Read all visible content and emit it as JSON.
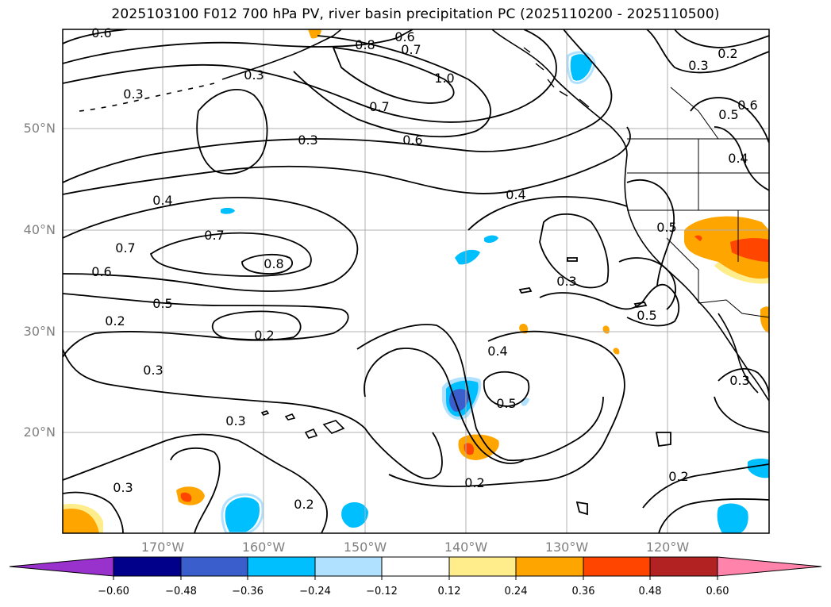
{
  "title": "2025103100 F012 700 hPa PV, river basin precipitation PC (2025110200 - 2025110500)",
  "map": {
    "lat_labels": [
      "50°N",
      "40°N",
      "30°N",
      "20°N"
    ],
    "lon_labels": [
      "170°W",
      "160°W",
      "150°W",
      "140°W",
      "130°W",
      "120°W"
    ],
    "contour_labels": [
      {
        "id": "c1",
        "text": "0.6"
      },
      {
        "id": "c2",
        "text": "0.8"
      },
      {
        "id": "c3",
        "text": "0.6"
      },
      {
        "id": "c4",
        "text": "0.7"
      },
      {
        "id": "c5",
        "text": "0.3"
      },
      {
        "id": "c6",
        "text": "0.3"
      },
      {
        "id": "c7",
        "text": "1.0"
      },
      {
        "id": "c8",
        "text": "0.7"
      },
      {
        "id": "c9",
        "text": "0.6"
      },
      {
        "id": "c10",
        "text": "0.3"
      },
      {
        "id": "c11",
        "text": "0.2"
      },
      {
        "id": "c12",
        "text": "0.3"
      },
      {
        "id": "c13",
        "text": "0.6"
      },
      {
        "id": "c14",
        "text": "0.5"
      },
      {
        "id": "c15",
        "text": "0.4"
      },
      {
        "id": "c16",
        "text": "0.4"
      },
      {
        "id": "c17",
        "text": "0.4"
      },
      {
        "id": "c18",
        "text": "0.7"
      },
      {
        "id": "c19",
        "text": "0.7"
      },
      {
        "id": "c20",
        "text": "0.8"
      },
      {
        "id": "c21",
        "text": "0.6"
      },
      {
        "id": "c22",
        "text": "0.5"
      },
      {
        "id": "c23",
        "text": "0.2"
      },
      {
        "id": "c24",
        "text": "0.2"
      },
      {
        "id": "c25",
        "text": "0.3"
      },
      {
        "id": "c26",
        "text": "0.3"
      },
      {
        "id": "c27",
        "text": "0.5"
      },
      {
        "id": "c28",
        "text": "0.4"
      },
      {
        "id": "c29",
        "text": "0.5"
      },
      {
        "id": "c30",
        "text": "0.5"
      },
      {
        "id": "c31",
        "text": "0.3"
      },
      {
        "id": "c32",
        "text": "0.3"
      },
      {
        "id": "c33",
        "text": "0.2"
      },
      {
        "id": "c34",
        "text": "0.2"
      },
      {
        "id": "c35",
        "text": "0.3"
      },
      {
        "id": "c36",
        "text": "0.2"
      }
    ]
  },
  "colorbar": {
    "colors": [
      "#9932cc",
      "#00008b",
      "#3a5fcd",
      "#00bfff",
      "#b0e2ff",
      "#ffffff",
      "#ffec8b",
      "#ffa500",
      "#ff4500",
      "#b22222",
      "#ff83aa"
    ],
    "tick_labels": [
      "−0.60",
      "−0.48",
      "−0.36",
      "−0.24",
      "−0.12",
      "0.12",
      "0.24",
      "0.36",
      "0.48",
      "0.60"
    ]
  }
}
